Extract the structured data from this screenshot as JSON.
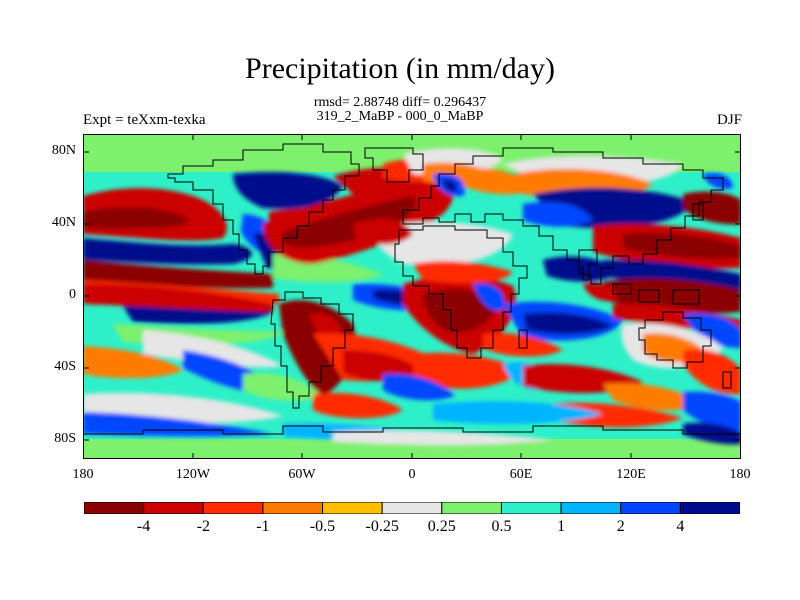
{
  "header": {
    "title": "Precipitation (in mm/day)",
    "stats_line1": "rmsd= 2.88748 diff= 0.296437",
    "stats_line2": "319_2_MaBP - 000_0_MaBP",
    "experiment": "Expt = teXxm-texka",
    "season": "DJF"
  },
  "map": {
    "lat_ticks": [
      "80N",
      "40N",
      "0",
      "40S",
      "80S"
    ],
    "lon_ticks": [
      "180",
      "120W",
      "60W",
      "0",
      "60E",
      "120E",
      "180"
    ]
  },
  "colorbar": {
    "colors": [
      "#8b0000",
      "#cc0000",
      "#ff2a00",
      "#ff7b00",
      "#ffbf00",
      "#e6e6e6",
      "#7df06e",
      "#2ef0c8",
      "#00b4ff",
      "#0046ff",
      "#000a8c"
    ],
    "labels": [
      "-4",
      "-2",
      "-1",
      "-0.5",
      "-0.25",
      "0.25",
      "0.5",
      "1",
      "2",
      "4"
    ]
  }
}
